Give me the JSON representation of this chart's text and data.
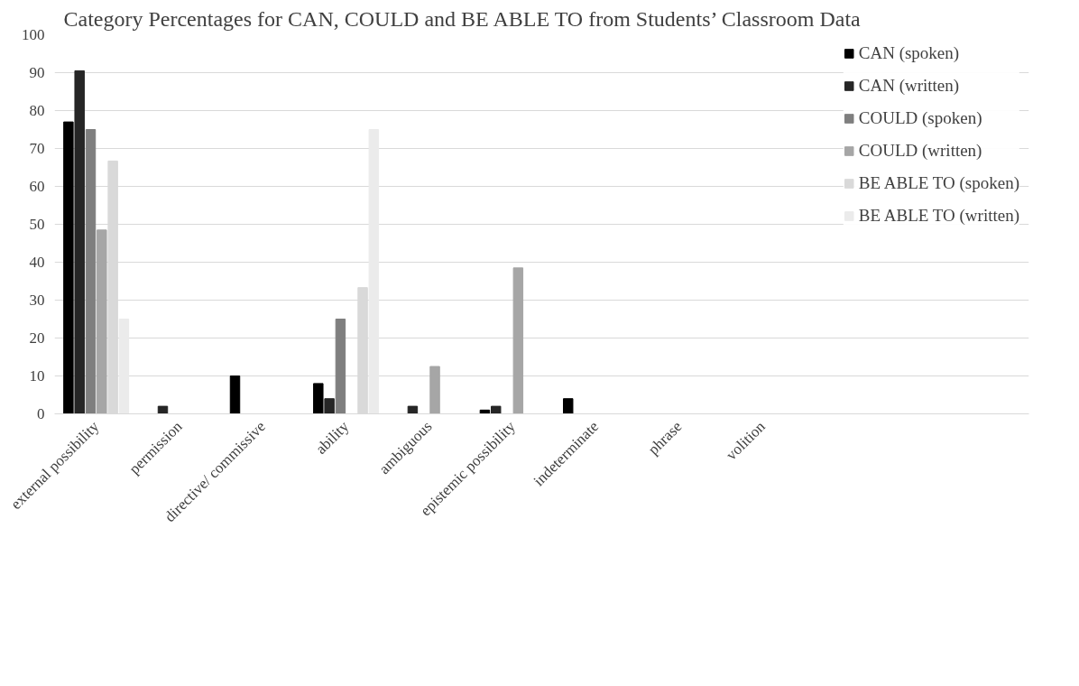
{
  "chart_data": {
    "type": "bar",
    "title": "Category Percentages for CAN, COULD and BE ABLE TO from Students’ Classroom Data",
    "categories": [
      "external possibility",
      "permission",
      "directive/ commissive",
      "ability",
      "ambiguous",
      "epistemic possibility",
      "indeterminate",
      "phrase",
      "volition"
    ],
    "series": [
      {
        "name": "CAN (spoken)",
        "color": "#000000",
        "values": [
          77,
          0,
          10,
          8,
          0,
          1,
          4,
          0,
          0
        ]
      },
      {
        "name": "CAN (written)",
        "color": "#262626",
        "values": [
          90.5,
          2,
          0,
          4,
          2,
          2,
          0,
          0,
          0
        ]
      },
      {
        "name": "COULD (spoken)",
        "color": "#7f7f7f",
        "values": [
          75,
          0,
          0,
          25,
          0,
          0,
          0,
          0,
          0
        ]
      },
      {
        "name": "COULD (written)",
        "color": "#a6a6a6",
        "values": [
          48.5,
          0,
          0,
          0,
          12.5,
          38.5,
          0,
          0,
          0
        ]
      },
      {
        "name": "BE ABLE TO (spoken)",
        "color": "#d9d9d9",
        "values": [
          66.7,
          0,
          0,
          33.3,
          0,
          0,
          0,
          0,
          0
        ]
      },
      {
        "name": "BE ABLE TO (written)",
        "color": "#ebebeb",
        "values": [
          25,
          0,
          0,
          75,
          0,
          0,
          0,
          0,
          0
        ]
      }
    ],
    "ylim": [
      0,
      100
    ],
    "yticks": [
      0,
      10,
      20,
      30,
      40,
      50,
      60,
      70,
      80,
      90,
      100
    ],
    "grid": "y",
    "legend": "right"
  }
}
